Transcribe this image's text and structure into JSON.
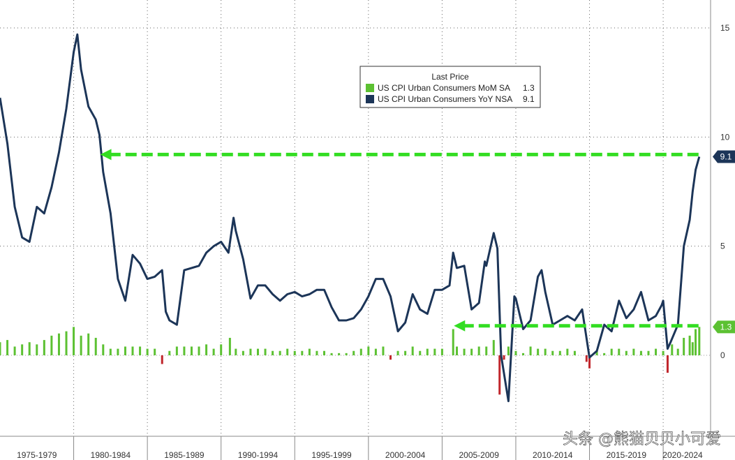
{
  "chart_data": {
    "type": "line",
    "title": "",
    "xlabel": "",
    "ylabel": "",
    "x_axis": {
      "range": [
        1975,
        2022.6
      ],
      "tick_labels": [
        "1975-1979",
        "1980-1984",
        "1985-1989",
        "1990-1994",
        "1995-1999",
        "2000-2004",
        "2005-2009",
        "2010-2014",
        "2015-2019",
        "2020-2024"
      ]
    },
    "y_axis": {
      "range": [
        -3.0,
        15.5
      ],
      "ticks": [
        15,
        10,
        5,
        0
      ],
      "side": "right"
    },
    "grid": true,
    "legend": {
      "placement": "top-center",
      "title": "Last Price",
      "entries": [
        {
          "label": "US CPI Urban Consumers MoM SA",
          "value": "1.3",
          "color": "#5cc132"
        },
        {
          "label": "US CPI Urban Consumers YoY NSA",
          "value": "9.1",
          "color": "#1c3558"
        }
      ]
    },
    "series": [
      {
        "name": "US CPI Urban Consumers YoY NSA",
        "kind": "line",
        "color": "#1c3558",
        "points": [
          [
            1975.0,
            11.8
          ],
          [
            1975.5,
            9.7
          ],
          [
            1976.0,
            6.8
          ],
          [
            1976.5,
            5.4
          ],
          [
            1977.0,
            5.2
          ],
          [
            1977.5,
            6.8
          ],
          [
            1978.0,
            6.5
          ],
          [
            1978.5,
            7.7
          ],
          [
            1979.0,
            9.3
          ],
          [
            1979.5,
            11.3
          ],
          [
            1980.0,
            13.9
          ],
          [
            1980.25,
            14.7
          ],
          [
            1980.5,
            13.1
          ],
          [
            1981.0,
            11.4
          ],
          [
            1981.5,
            10.8
          ],
          [
            1981.75,
            10.1
          ],
          [
            1982.0,
            8.4
          ],
          [
            1982.5,
            6.5
          ],
          [
            1983.0,
            3.5
          ],
          [
            1983.5,
            2.5
          ],
          [
            1984.0,
            4.6
          ],
          [
            1984.5,
            4.2
          ],
          [
            1985.0,
            3.5
          ],
          [
            1985.5,
            3.6
          ],
          [
            1986.0,
            3.9
          ],
          [
            1986.25,
            2.0
          ],
          [
            1986.5,
            1.6
          ],
          [
            1987.0,
            1.4
          ],
          [
            1987.5,
            3.9
          ],
          [
            1988.0,
            4.0
          ],
          [
            1988.5,
            4.1
          ],
          [
            1989.0,
            4.7
          ],
          [
            1989.5,
            5.0
          ],
          [
            1990.0,
            5.2
          ],
          [
            1990.5,
            4.7
          ],
          [
            1990.85,
            6.3
          ],
          [
            1991.0,
            5.7
          ],
          [
            1991.5,
            4.4
          ],
          [
            1992.0,
            2.6
          ],
          [
            1992.5,
            3.2
          ],
          [
            1993.0,
            3.2
          ],
          [
            1993.5,
            2.8
          ],
          [
            1994.0,
            2.5
          ],
          [
            1994.5,
            2.8
          ],
          [
            1995.0,
            2.9
          ],
          [
            1995.5,
            2.7
          ],
          [
            1996.0,
            2.8
          ],
          [
            1996.5,
            3.0
          ],
          [
            1997.0,
            3.0
          ],
          [
            1997.5,
            2.2
          ],
          [
            1998.0,
            1.6
          ],
          [
            1998.5,
            1.6
          ],
          [
            1999.0,
            1.7
          ],
          [
            1999.5,
            2.1
          ],
          [
            2000.0,
            2.7
          ],
          [
            2000.5,
            3.5
          ],
          [
            2001.0,
            3.5
          ],
          [
            2001.5,
            2.7
          ],
          [
            2002.0,
            1.1
          ],
          [
            2002.5,
            1.5
          ],
          [
            2003.0,
            2.8
          ],
          [
            2003.5,
            2.1
          ],
          [
            2004.0,
            1.9
          ],
          [
            2004.5,
            3.0
          ],
          [
            2005.0,
            3.0
          ],
          [
            2005.5,
            3.2
          ],
          [
            2005.75,
            4.7
          ],
          [
            2006.0,
            4.0
          ],
          [
            2006.5,
            4.1
          ],
          [
            2007.0,
            2.1
          ],
          [
            2007.5,
            2.4
          ],
          [
            2007.9,
            4.3
          ],
          [
            2008.0,
            4.1
          ],
          [
            2008.5,
            5.6
          ],
          [
            2008.75,
            4.9
          ],
          [
            2009.0,
            0.0
          ],
          [
            2009.5,
            -2.1
          ],
          [
            2009.9,
            2.7
          ],
          [
            2010.0,
            2.6
          ],
          [
            2010.5,
            1.2
          ],
          [
            2011.0,
            1.6
          ],
          [
            2011.5,
            3.6
          ],
          [
            2011.75,
            3.9
          ],
          [
            2012.0,
            2.9
          ],
          [
            2012.5,
            1.4
          ],
          [
            2013.0,
            1.6
          ],
          [
            2013.5,
            1.8
          ],
          [
            2014.0,
            1.6
          ],
          [
            2014.5,
            2.1
          ],
          [
            2015.0,
            -0.1
          ],
          [
            2015.5,
            0.2
          ],
          [
            2016.0,
            1.4
          ],
          [
            2016.5,
            1.1
          ],
          [
            2017.0,
            2.5
          ],
          [
            2017.5,
            1.7
          ],
          [
            2018.0,
            2.1
          ],
          [
            2018.5,
            2.9
          ],
          [
            2019.0,
            1.6
          ],
          [
            2019.5,
            1.8
          ],
          [
            2019.9,
            2.3
          ],
          [
            2020.0,
            2.5
          ],
          [
            2020.3,
            0.3
          ],
          [
            2020.5,
            0.6
          ],
          [
            2021.0,
            1.4
          ],
          [
            2021.4,
            5.0
          ],
          [
            2021.8,
            6.2
          ],
          [
            2022.0,
            7.5
          ],
          [
            2022.2,
            8.5
          ],
          [
            2022.45,
            9.1
          ]
        ]
      },
      {
        "name": "US CPI Urban Consumers MoM SA",
        "kind": "bar",
        "color": "#5cc132",
        "negative_color": "#c0262c",
        "points": [
          [
            1975,
            0.6
          ],
          [
            1975.5,
            0.7
          ],
          [
            1976,
            0.4
          ],
          [
            1976.5,
            0.5
          ],
          [
            1977,
            0.6
          ],
          [
            1977.5,
            0.5
          ],
          [
            1978,
            0.7
          ],
          [
            1978.5,
            0.9
          ],
          [
            1979,
            1.0
          ],
          [
            1979.5,
            1.1
          ],
          [
            1980,
            1.3
          ],
          [
            1980.5,
            0.9
          ],
          [
            1981,
            1.0
          ],
          [
            1981.5,
            0.8
          ],
          [
            1982,
            0.5
          ],
          [
            1982.5,
            0.3
          ],
          [
            1983,
            0.3
          ],
          [
            1983.5,
            0.4
          ],
          [
            1984,
            0.4
          ],
          [
            1984.5,
            0.4
          ],
          [
            1985,
            0.3
          ],
          [
            1985.5,
            0.3
          ],
          [
            1986,
            -0.4
          ],
          [
            1986.5,
            0.2
          ],
          [
            1987,
            0.4
          ],
          [
            1987.5,
            0.4
          ],
          [
            1988,
            0.4
          ],
          [
            1988.5,
            0.4
          ],
          [
            1989,
            0.5
          ],
          [
            1989.5,
            0.3
          ],
          [
            1990,
            0.5
          ],
          [
            1990.6,
            0.8
          ],
          [
            1991,
            0.3
          ],
          [
            1991.5,
            0.2
          ],
          [
            1992,
            0.3
          ],
          [
            1992.5,
            0.3
          ],
          [
            1993,
            0.3
          ],
          [
            1993.5,
            0.2
          ],
          [
            1994,
            0.2
          ],
          [
            1994.5,
            0.3
          ],
          [
            1995,
            0.2
          ],
          [
            1995.5,
            0.2
          ],
          [
            1996,
            0.3
          ],
          [
            1996.5,
            0.2
          ],
          [
            1997,
            0.2
          ],
          [
            1997.5,
            0.1
          ],
          [
            1998,
            0.1
          ],
          [
            1998.5,
            0.1
          ],
          [
            1999,
            0.2
          ],
          [
            1999.5,
            0.3
          ],
          [
            2000,
            0.4
          ],
          [
            2000.5,
            0.3
          ],
          [
            2001,
            0.4
          ],
          [
            2001.5,
            -0.2
          ],
          [
            2002,
            0.2
          ],
          [
            2002.5,
            0.2
          ],
          [
            2003,
            0.4
          ],
          [
            2003.5,
            0.2
          ],
          [
            2004,
            0.3
          ],
          [
            2004.5,
            0.3
          ],
          [
            2005,
            0.3
          ],
          [
            2005.75,
            1.2
          ],
          [
            2006,
            0.4
          ],
          [
            2006.5,
            0.3
          ],
          [
            2007,
            0.3
          ],
          [
            2007.5,
            0.4
          ],
          [
            2008,
            0.4
          ],
          [
            2008.5,
            0.7
          ],
          [
            2008.9,
            -1.8
          ],
          [
            2009.2,
            -0.2
          ],
          [
            2009.5,
            0.4
          ],
          [
            2010,
            0.2
          ],
          [
            2010.5,
            0.1
          ],
          [
            2011,
            0.4
          ],
          [
            2011.5,
            0.3
          ],
          [
            2012,
            0.3
          ],
          [
            2012.5,
            0.2
          ],
          [
            2013,
            0.2
          ],
          [
            2013.5,
            0.3
          ],
          [
            2014,
            0.2
          ],
          [
            2014.8,
            -0.3
          ],
          [
            2015,
            -0.6
          ],
          [
            2015.5,
            0.2
          ],
          [
            2016,
            0.1
          ],
          [
            2016.5,
            0.3
          ],
          [
            2017,
            0.3
          ],
          [
            2017.5,
            0.2
          ],
          [
            2018,
            0.3
          ],
          [
            2018.5,
            0.2
          ],
          [
            2019,
            0.2
          ],
          [
            2019.5,
            0.3
          ],
          [
            2020,
            0.2
          ],
          [
            2020.3,
            -0.8
          ],
          [
            2020.6,
            0.5
          ],
          [
            2021,
            0.3
          ],
          [
            2021.4,
            0.8
          ],
          [
            2021.8,
            0.9
          ],
          [
            2022,
            0.6
          ],
          [
            2022.2,
            1.2
          ],
          [
            2022.45,
            1.3
          ]
        ]
      }
    ],
    "annotations": [
      {
        "kind": "dashed-arrow",
        "from": [
          2022.4,
          9.2
        ],
        "to": [
          1981.8,
          9.2
        ],
        "color": "#33dd22"
      },
      {
        "kind": "dashed-arrow",
        "from": [
          2022.4,
          1.35
        ],
        "to": [
          2005.8,
          1.35
        ],
        "color": "#33dd22"
      }
    ],
    "value_tags": [
      {
        "text": "9.1",
        "value": 9.1,
        "color": "#1c3558"
      },
      {
        "text": "1.3",
        "value": 1.3,
        "color": "#5cc132"
      }
    ]
  },
  "watermark": "头条 @熊猫贝贝小可爱"
}
